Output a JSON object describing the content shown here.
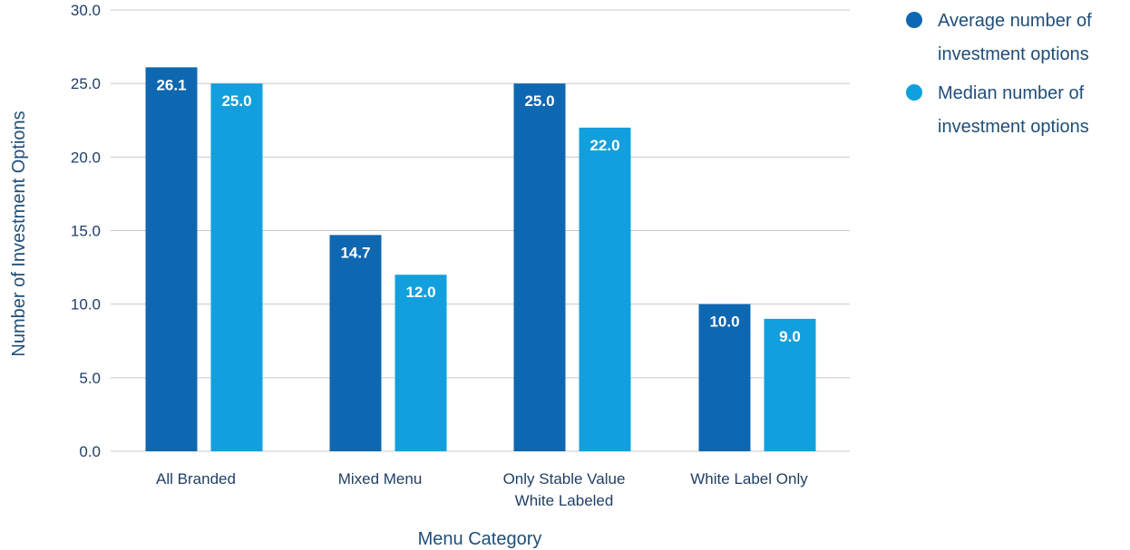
{
  "chart_data": {
    "type": "bar",
    "categories": [
      [
        "All Branded"
      ],
      [
        "Mixed Menu"
      ],
      [
        "Only Stable Value",
        "White Labeled"
      ],
      [
        "White Label Only"
      ]
    ],
    "series": [
      {
        "name_lines": [
          "Average number of",
          "investment options"
        ],
        "color": "#0e67b1",
        "values": [
          26.1,
          14.7,
          25.0,
          10.0
        ],
        "labels": [
          "26.1",
          "14.7",
          "25.0",
          "10.0"
        ]
      },
      {
        "name_lines": [
          "Median number of",
          "investment options"
        ],
        "color": "#11a0dd",
        "values": [
          25.0,
          12.0,
          22.0,
          9.0
        ],
        "labels": [
          "25.0",
          "12.0",
          "22.0",
          "9.0"
        ]
      }
    ],
    "xlabel": "Menu Category",
    "ylabel": "Number of Investment Options",
    "ylim": [
      0,
      30
    ],
    "yticks": [
      0,
      5,
      10,
      15,
      20,
      25,
      30
    ],
    "ytick_labels": [
      "0.0",
      "5.0",
      "10.0",
      "15.0",
      "20.0",
      "25.0",
      "30.0"
    ],
    "grid": true,
    "legend_position": "top-right"
  }
}
